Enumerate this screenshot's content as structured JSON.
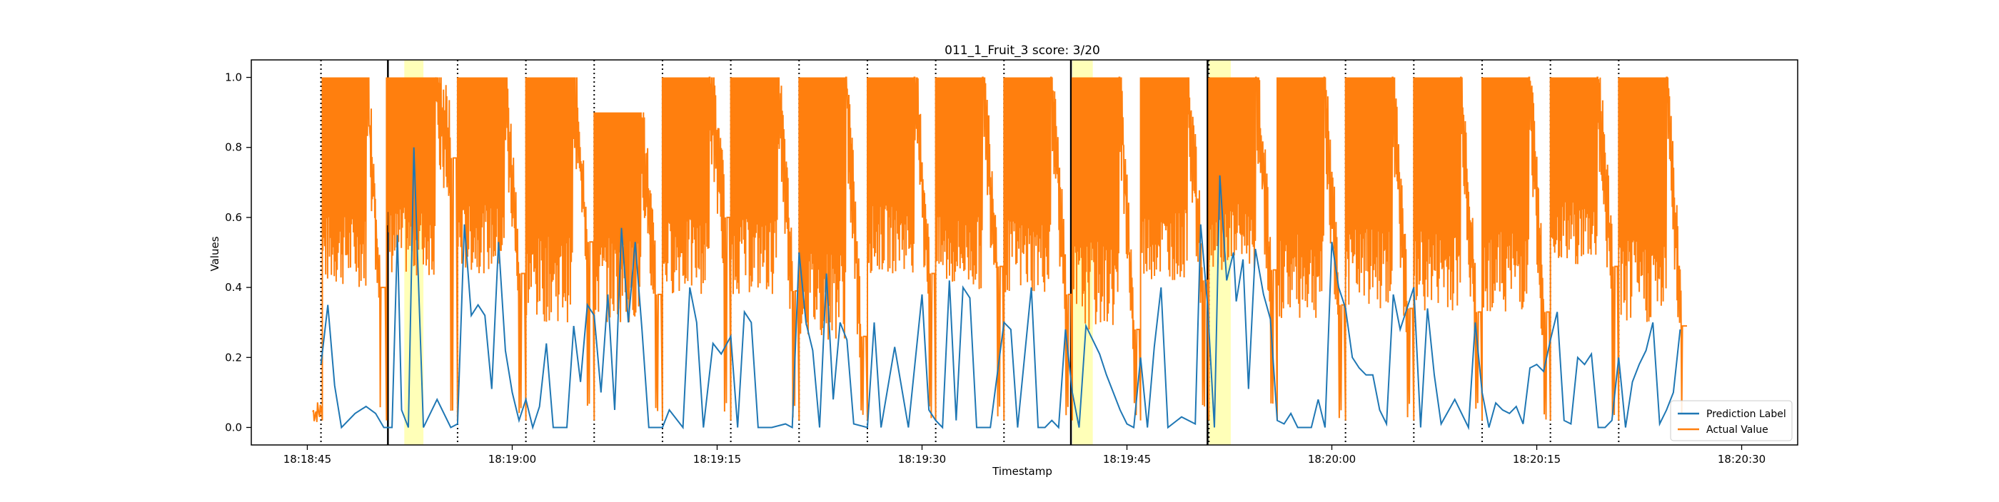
{
  "chart_data": {
    "type": "line",
    "title": "011_1_Fruit_3 score: 3/20",
    "xlabel": "Timestamp",
    "ylabel": "Values",
    "x_unit": "seconds after 18:18:40",
    "xlim": [
      0.9,
      114.1
    ],
    "ylim": [
      -0.05,
      1.05
    ],
    "x_ticks": [
      {
        "value": 5,
        "label": "18:18:45"
      },
      {
        "value": 20,
        "label": "18:19:00"
      },
      {
        "value": 35,
        "label": "18:19:15"
      },
      {
        "value": 50,
        "label": "18:19:30"
      },
      {
        "value": 65,
        "label": "18:19:45"
      },
      {
        "value": 80,
        "label": "18:20:00"
      },
      {
        "value": 95,
        "label": "18:20:15"
      },
      {
        "value": 110,
        "label": "18:20:30"
      }
    ],
    "y_ticks": [
      {
        "value": 0.0,
        "label": "0.0"
      },
      {
        "value": 0.2,
        "label": "0.2"
      },
      {
        "value": 0.4,
        "label": "0.4"
      },
      {
        "value": 0.6,
        "label": "0.6"
      },
      {
        "value": 0.8,
        "label": "0.8"
      },
      {
        "value": 1.0,
        "label": "1.0"
      }
    ],
    "grid": false,
    "legend_position": "lower-right",
    "dotted_vlines": [
      6.0,
      16.0,
      21.0,
      26.0,
      31.0,
      36.0,
      41.0,
      46.0,
      51.0,
      56.0,
      71.0,
      81.0,
      86.0,
      91.0,
      96.0,
      101.0
    ],
    "solid_vlines": [
      10.9,
      60.9,
      70.9
    ],
    "highlight_spans": [
      [
        12.1,
        13.5
      ],
      [
        61.0,
        62.5
      ],
      [
        71.0,
        72.6
      ]
    ],
    "series": [
      {
        "name": "Prediction Label",
        "color": "#1f77b4",
        "points": [
          [
            6.0,
            0.18
          ],
          [
            6.5,
            0.35
          ],
          [
            7.0,
            0.12
          ],
          [
            7.5,
            0.0
          ],
          [
            8.5,
            0.04
          ],
          [
            9.3,
            0.06
          ],
          [
            10.0,
            0.04
          ],
          [
            10.6,
            0.0
          ],
          [
            11.2,
            0.0
          ],
          [
            11.6,
            0.55
          ],
          [
            11.9,
            0.05
          ],
          [
            12.4,
            0.0
          ],
          [
            12.8,
            0.8
          ],
          [
            13.5,
            0.0
          ],
          [
            14.5,
            0.08
          ],
          [
            15.5,
            0.0
          ],
          [
            16.0,
            0.01
          ],
          [
            16.5,
            0.58
          ],
          [
            17.0,
            0.32
          ],
          [
            17.5,
            0.35
          ],
          [
            18.0,
            0.32
          ],
          [
            18.5,
            0.11
          ],
          [
            19.0,
            0.53
          ],
          [
            19.5,
            0.22
          ],
          [
            20.0,
            0.1
          ],
          [
            20.5,
            0.02
          ],
          [
            21.0,
            0.08
          ],
          [
            21.5,
            0.0
          ],
          [
            22.0,
            0.06
          ],
          [
            22.5,
            0.24
          ],
          [
            23.0,
            0.0
          ],
          [
            24.0,
            0.0
          ],
          [
            24.5,
            0.29
          ],
          [
            25.0,
            0.13
          ],
          [
            25.5,
            0.35
          ],
          [
            26.0,
            0.32
          ],
          [
            26.5,
            0.1
          ],
          [
            27.0,
            0.38
          ],
          [
            27.5,
            0.05
          ],
          [
            28.0,
            0.57
          ],
          [
            28.5,
            0.3
          ],
          [
            29.0,
            0.53
          ],
          [
            29.5,
            0.28
          ],
          [
            30.0,
            0.0
          ],
          [
            31.0,
            0.0
          ],
          [
            31.5,
            0.05
          ],
          [
            32.5,
            0.0
          ],
          [
            33.0,
            0.4
          ],
          [
            33.5,
            0.3
          ],
          [
            34.0,
            0.0
          ],
          [
            34.7,
            0.24
          ],
          [
            35.3,
            0.21
          ],
          [
            36.0,
            0.26
          ],
          [
            36.5,
            0.0
          ],
          [
            37.0,
            0.33
          ],
          [
            37.5,
            0.3
          ],
          [
            38.0,
            0.0
          ],
          [
            39.0,
            0.0
          ],
          [
            40.0,
            0.01
          ],
          [
            40.5,
            0.0
          ],
          [
            41.0,
            0.5
          ],
          [
            41.5,
            0.3
          ],
          [
            42.0,
            0.22
          ],
          [
            42.5,
            0.0
          ],
          [
            43.0,
            0.44
          ],
          [
            43.5,
            0.08
          ],
          [
            44.0,
            0.3
          ],
          [
            44.5,
            0.25
          ],
          [
            45.0,
            0.01
          ],
          [
            46.0,
            0.0
          ],
          [
            46.5,
            0.3
          ],
          [
            47.0,
            0.0
          ],
          [
            48.0,
            0.23
          ],
          [
            49.0,
            0.0
          ],
          [
            50.0,
            0.38
          ],
          [
            50.5,
            0.05
          ],
          [
            51.0,
            0.02
          ],
          [
            51.5,
            0.0
          ],
          [
            52.0,
            0.42
          ],
          [
            52.5,
            0.02
          ],
          [
            53.0,
            0.4
          ],
          [
            53.5,
            0.37
          ],
          [
            54.0,
            0.0
          ],
          [
            55.0,
            0.0
          ],
          [
            56.0,
            0.3
          ],
          [
            56.5,
            0.28
          ],
          [
            57.0,
            0.0
          ],
          [
            58.0,
            0.4
          ],
          [
            58.5,
            0.0
          ],
          [
            59.0,
            0.0
          ],
          [
            59.5,
            0.02
          ],
          [
            60.0,
            0.0
          ],
          [
            60.5,
            0.28
          ],
          [
            61.0,
            0.1
          ],
          [
            61.5,
            0.0
          ],
          [
            62.0,
            0.29
          ],
          [
            63.0,
            0.21
          ],
          [
            63.5,
            0.15
          ],
          [
            64.0,
            0.1
          ],
          [
            64.5,
            0.05
          ],
          [
            65.0,
            0.01
          ],
          [
            65.5,
            0.0
          ],
          [
            66.0,
            0.2
          ],
          [
            66.5,
            0.0
          ],
          [
            67.0,
            0.23
          ],
          [
            67.5,
            0.4
          ],
          [
            68.0,
            0.0
          ],
          [
            69.0,
            0.03
          ],
          [
            70.0,
            0.01
          ],
          [
            70.4,
            0.58
          ],
          [
            70.9,
            0.35
          ],
          [
            71.4,
            0.0
          ],
          [
            71.8,
            0.72
          ],
          [
            72.3,
            0.42
          ],
          [
            72.8,
            0.5
          ],
          [
            73.0,
            0.36
          ],
          [
            73.5,
            0.48
          ],
          [
            73.9,
            0.11
          ],
          [
            74.4,
            0.51
          ],
          [
            75.0,
            0.38
          ],
          [
            75.5,
            0.31
          ],
          [
            76.0,
            0.02
          ],
          [
            76.5,
            0.01
          ],
          [
            77.0,
            0.04
          ],
          [
            77.5,
            0.0
          ],
          [
            78.5,
            0.0
          ],
          [
            79.0,
            0.08
          ],
          [
            79.5,
            0.0
          ],
          [
            80.0,
            0.53
          ],
          [
            80.5,
            0.4
          ],
          [
            81.0,
            0.34
          ],
          [
            81.5,
            0.2
          ],
          [
            82.0,
            0.17
          ],
          [
            82.5,
            0.15
          ],
          [
            83.0,
            0.15
          ],
          [
            83.5,
            0.05
          ],
          [
            84.0,
            0.01
          ],
          [
            84.5,
            0.38
          ],
          [
            85.0,
            0.28
          ],
          [
            85.5,
            0.34
          ],
          [
            86.0,
            0.4
          ],
          [
            86.5,
            0.0
          ],
          [
            87.0,
            0.34
          ],
          [
            87.5,
            0.15
          ],
          [
            88.0,
            0.01
          ],
          [
            89.0,
            0.08
          ],
          [
            89.5,
            0.04
          ],
          [
            90.0,
            0.0
          ],
          [
            90.5,
            0.3
          ],
          [
            91.0,
            0.1
          ],
          [
            91.5,
            0.0
          ],
          [
            92.0,
            0.07
          ],
          [
            92.5,
            0.05
          ],
          [
            93.0,
            0.04
          ],
          [
            93.5,
            0.06
          ],
          [
            94.0,
            0.01
          ],
          [
            94.5,
            0.17
          ],
          [
            95.0,
            0.18
          ],
          [
            95.5,
            0.16
          ],
          [
            96.0,
            0.25
          ],
          [
            96.5,
            0.33
          ],
          [
            97.0,
            0.02
          ],
          [
            97.5,
            0.01
          ],
          [
            98.0,
            0.2
          ],
          [
            98.5,
            0.18
          ],
          [
            99.0,
            0.21
          ],
          [
            99.5,
            0.0
          ],
          [
            100.0,
            0.0
          ],
          [
            100.5,
            0.02
          ],
          [
            101.0,
            0.2
          ],
          [
            101.5,
            0.0
          ],
          [
            102.0,
            0.13
          ],
          [
            102.5,
            0.18
          ],
          [
            103.0,
            0.22
          ],
          [
            103.5,
            0.3
          ],
          [
            104.0,
            0.01
          ],
          [
            104.5,
            0.05
          ],
          [
            105.0,
            0.1
          ],
          [
            105.5,
            0.28
          ]
        ]
      },
      {
        "name": "Actual Value",
        "color": "#ff7f0e",
        "segments": [
          {
            "start": 5.4,
            "end": 6.0,
            "ceil": 0.08,
            "floor": 0.01,
            "tail": 0.05,
            "tail_dips": 0
          },
          {
            "start": 6.1,
            "end": 10.7,
            "ceil": 1.0,
            "floor": 0.4,
            "tail": 0.4,
            "tail_dips": 1
          },
          {
            "start": 10.8,
            "end": 15.9,
            "ceil": 1.0,
            "floor": 0.43,
            "tail": 0.77,
            "tail_dips": 2
          },
          {
            "start": 16.0,
            "end": 20.9,
            "ceil": 1.0,
            "floor": 0.44,
            "tail": 0.44,
            "tail_dips": 2
          },
          {
            "start": 21.0,
            "end": 25.9,
            "ceil": 1.0,
            "floor": 0.3,
            "tail": 0.53,
            "tail_dips": 2
          },
          {
            "start": 26.0,
            "end": 30.9,
            "ceil": 0.9,
            "floor": 0.3,
            "tail": 0.38,
            "tail_dips": 2
          },
          {
            "start": 31.0,
            "end": 35.9,
            "ceil": 1.0,
            "floor": 0.38,
            "tail": 0.6,
            "tail_dips": 2
          },
          {
            "start": 36.0,
            "end": 40.9,
            "ceil": 1.0,
            "floor": 0.38,
            "tail": 0.39,
            "tail_dips": 2
          },
          {
            "start": 41.0,
            "end": 45.9,
            "ceil": 1.0,
            "floor": 0.25,
            "tail": 0.26,
            "tail_dips": 2
          },
          {
            "start": 46.0,
            "end": 50.9,
            "ceil": 1.0,
            "floor": 0.44,
            "tail": 0.44,
            "tail_dips": 2
          },
          {
            "start": 51.0,
            "end": 55.9,
            "ceil": 1.0,
            "floor": 0.39,
            "tail": 0.46,
            "tail_dips": 2
          },
          {
            "start": 56.0,
            "end": 60.9,
            "ceil": 1.0,
            "floor": 0.38,
            "tail": 0.38,
            "tail_dips": 2
          },
          {
            "start": 61.0,
            "end": 65.9,
            "ceil": 1.0,
            "floor": 0.28,
            "tail": 0.28,
            "tail_dips": 2
          },
          {
            "start": 66.0,
            "end": 70.9,
            "ceil": 1.0,
            "floor": 0.42,
            "tail": 0.42,
            "tail_dips": 2
          },
          {
            "start": 71.0,
            "end": 75.9,
            "ceil": 1.0,
            "floor": 0.45,
            "tail": 0.45,
            "tail_dips": 2
          },
          {
            "start": 76.0,
            "end": 80.9,
            "ceil": 1.0,
            "floor": 0.31,
            "tail": 0.35,
            "tail_dips": 2
          },
          {
            "start": 81.0,
            "end": 85.9,
            "ceil": 1.0,
            "floor": 0.34,
            "tail": 0.34,
            "tail_dips": 2
          },
          {
            "start": 86.0,
            "end": 90.9,
            "ceil": 1.0,
            "floor": 0.33,
            "tail": 0.33,
            "tail_dips": 2
          },
          {
            "start": 91.0,
            "end": 95.9,
            "ceil": 1.0,
            "floor": 0.33,
            "tail": 0.33,
            "tail_dips": 2
          },
          {
            "start": 96.0,
            "end": 100.9,
            "ceil": 1.0,
            "floor": 0.46,
            "tail": 0.46,
            "tail_dips": 2
          },
          {
            "start": 101.0,
            "end": 106.0,
            "ceil": 1.0,
            "floor": 0.29,
            "tail": 0.29,
            "tail_dips": 1
          }
        ]
      }
    ]
  }
}
